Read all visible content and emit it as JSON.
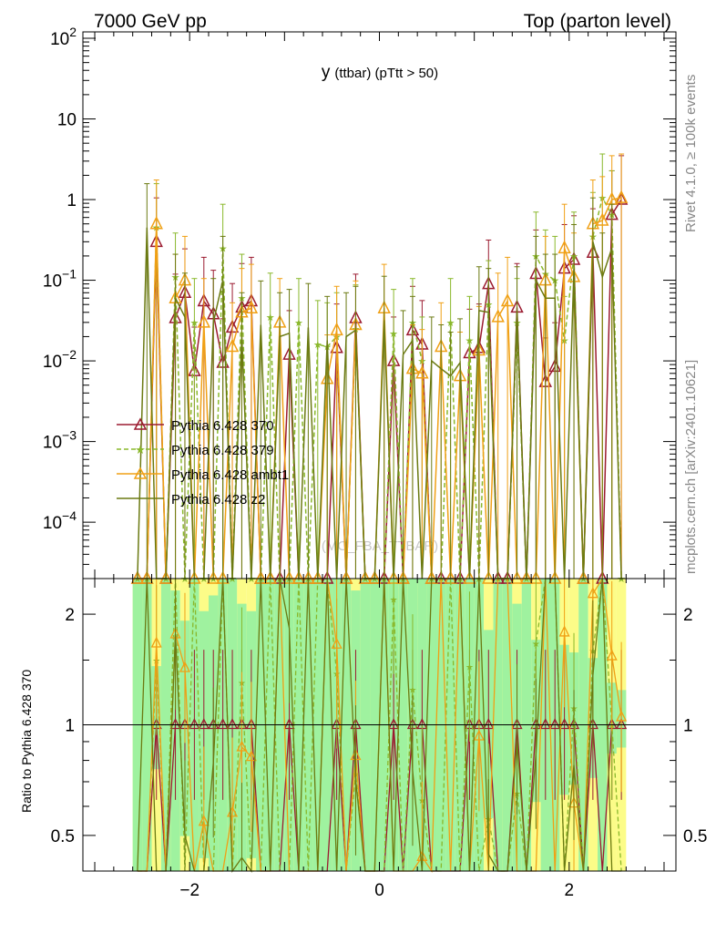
{
  "header": {
    "left": "7000 GeV pp",
    "right": "Top (parton level)"
  },
  "side_text": {
    "rivet": "Rivet 4.1.0, ≥ 100k events",
    "mcplots": "mcplots.cern.ch [arXiv:2401.10621]"
  },
  "chart_data": {
    "type": "line",
    "title_main": "y",
    "title_sub": "(ttbar) (pTtt > 50)",
    "watermark": "(MC_FBA_TTBAR)",
    "y_scale": "log",
    "ylim": [
      2e-05,
      120
    ],
    "xlim": [
      -3.125,
      3.125
    ],
    "x_ticks": [
      "−2",
      "0",
      "2"
    ],
    "x_tick_values": [
      -2,
      0,
      2
    ],
    "y_tick_values": [
      0.0001,
      0.001,
      0.01,
      0.1,
      1,
      10,
      100
    ],
    "y_tick_labels": [
      {
        "base": "10",
        "exp": "−4"
      },
      {
        "base": "10",
        "exp": "−3"
      },
      {
        "base": "10",
        "exp": "−2"
      },
      {
        "base": "10",
        "exp": "−1"
      },
      {
        "base": "1",
        "exp": ""
      },
      {
        "base": "10",
        "exp": ""
      },
      {
        "base": "10",
        "exp": "2"
      }
    ],
    "legend_position": "center-left",
    "x": [
      -2.55,
      -2.45,
      -2.35,
      -2.25,
      -2.15,
      -2.05,
      -1.95,
      -1.85,
      -1.75,
      -1.65,
      -1.55,
      -1.45,
      -1.35,
      -1.25,
      -1.15,
      -1.05,
      -0.95,
      -0.85,
      -0.75,
      -0.65,
      -0.55,
      -0.45,
      -0.35,
      -0.25,
      -0.15,
      -0.05,
      0.05,
      0.15,
      0.25,
      0.35,
      0.45,
      0.55,
      0.65,
      0.75,
      0.85,
      0.95,
      1.05,
      1.15,
      1.25,
      1.35,
      1.45,
      1.55,
      1.65,
      1.75,
      1.85,
      1.95,
      2.05,
      2.15,
      2.25,
      2.35,
      2.45,
      2.55
    ],
    "series": [
      {
        "name": "Pythia 6.428 370",
        "color": "#9b1b30",
        "dash": "",
        "marker": "triangle-open",
        "values": [
          0,
          0,
          0.3,
          0,
          0.034,
          0.07,
          0.0075,
          0.055,
          0.038,
          0.0095,
          0.026,
          0.046,
          0.055,
          0,
          0,
          0,
          0.012,
          0,
          0,
          0,
          0,
          0.0145,
          0,
          0.034,
          0,
          0,
          0,
          0.01,
          0,
          0.024,
          0.016,
          0,
          0,
          0,
          0,
          0.0125,
          0.0145,
          0.09,
          0,
          0,
          0.046,
          0,
          0.12,
          0.0055,
          0.0085,
          0.14,
          0.18,
          0,
          0.22,
          0,
          0.65,
          1.0
        ]
      },
      {
        "name": "Pythia 6.428 379",
        "color": "#8ab82c",
        "dash": "5,3",
        "marker": "star",
        "values": [
          0,
          0,
          0.45,
          0,
          0.11,
          0,
          0.03,
          0,
          0,
          0.25,
          0,
          0.06,
          0,
          0,
          0.035,
          0,
          0,
          0.03,
          0,
          0.016,
          0.015,
          0.02,
          0,
          0.025,
          0,
          0,
          0,
          0.022,
          0,
          0.03,
          0.01,
          0,
          0,
          0.03,
          0,
          0.018,
          0,
          0.05,
          0,
          0,
          0.03,
          0,
          0.2,
          0.12,
          0.1,
          0.018,
          0.2,
          0,
          0.35,
          1.05,
          0.65,
          0
        ]
      },
      {
        "name": "Pythia 6.428 ambt1",
        "color": "#f0a015",
        "dash": "",
        "marker": "triangle-open",
        "values": [
          0,
          0,
          0.5,
          0,
          0.06,
          0.1,
          0,
          0.03,
          0,
          0,
          0.015,
          0.04,
          0.045,
          0,
          0,
          0.03,
          0,
          0,
          0,
          0,
          0.006,
          0.024,
          0,
          0.028,
          0,
          0,
          0.045,
          0,
          0,
          0.008,
          0.007,
          0,
          0.015,
          0,
          0.0065,
          0,
          0.0135,
          0,
          0.035,
          0.055,
          0,
          0,
          0,
          0.1,
          0,
          0.25,
          0.11,
          0,
          0.5,
          0.55,
          1.0,
          1.05
        ]
      },
      {
        "name": "Pythia 6.428 z2",
        "color": "#6b7a12",
        "dash": "",
        "marker": "none",
        "values": [
          0,
          0.45,
          0,
          0,
          0.06,
          0.035,
          0,
          0,
          0.03,
          0.1,
          0,
          0.02,
          0,
          0.028,
          0,
          0.02,
          0.022,
          0,
          0.026,
          0,
          0.018,
          0,
          0.02,
          0.024,
          0,
          0,
          0.032,
          0,
          0.012,
          0.018,
          0,
          0.01,
          0.008,
          0.0065,
          0.0095,
          0,
          0.042,
          0.04,
          0,
          0,
          0.042,
          0,
          0.1,
          0.06,
          0.06,
          0,
          0.14,
          0,
          0.3,
          0.11,
          0.25,
          0
        ]
      }
    ],
    "ratio": {
      "ylabel": "Ratio to Pythia 6.428 370",
      "ylim": [
        0.4,
        2.5
      ],
      "tick_values": [
        0.5,
        1,
        2
      ],
      "tick_labels": [
        "0.5",
        "1",
        "2"
      ],
      "band_color_inner": "#9ff29f",
      "band_color_outer": "#fcfc88"
    }
  }
}
